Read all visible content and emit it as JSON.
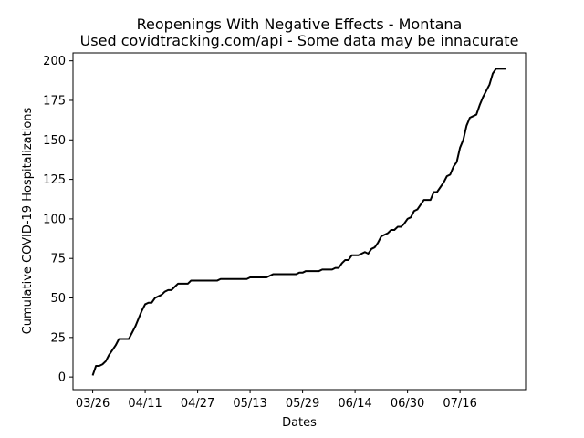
{
  "chart_data": {
    "type": "line",
    "title": "Reopenings With Negative Effects - Montana",
    "subtitle": "Used covidtracking.com/api - Some data may be innacurate",
    "xlabel": "Dates",
    "ylabel": "Cumulative COVID-19 Hospitalizations",
    "x_tick_labels": [
      "03/26",
      "04/11",
      "04/27",
      "05/13",
      "05/29",
      "06/14",
      "06/30",
      "07/16"
    ],
    "y_ticks": [
      0,
      25,
      50,
      75,
      100,
      125,
      150,
      175,
      200
    ],
    "ylim": [
      -8,
      205
    ],
    "xlim": [
      -6,
      132
    ],
    "x_start_label": "03/26",
    "grid": false,
    "legend": "none",
    "line_color": "#000000",
    "series": [
      {
        "x": [
          0,
          1,
          2,
          3,
          4,
          5,
          6,
          7,
          8,
          9,
          10,
          11,
          12,
          13,
          14,
          15,
          16,
          17,
          18,
          19,
          20,
          21,
          22,
          23,
          24,
          25,
          26,
          27,
          28,
          29,
          30,
          31,
          32,
          33,
          34,
          35,
          36,
          37,
          38,
          39,
          40,
          41,
          42,
          43,
          44,
          45,
          46,
          47,
          48,
          49,
          50,
          51,
          52,
          53,
          54,
          55,
          56,
          57,
          58,
          59,
          60,
          61,
          62,
          63,
          64,
          65,
          66,
          67,
          68,
          69,
          70,
          71,
          72,
          73,
          74,
          75,
          76,
          77,
          78,
          79,
          80,
          81,
          82,
          83,
          84,
          85,
          86,
          87,
          88,
          89,
          90,
          91,
          92,
          93,
          94,
          95,
          96,
          97,
          98,
          99,
          100,
          101,
          102,
          103,
          104,
          105,
          106,
          107,
          108,
          109,
          110,
          111,
          112,
          113,
          114,
          115,
          116,
          117,
          118,
          119,
          120,
          121,
          122,
          123,
          124,
          125,
          126
        ],
        "y": [
          1,
          7,
          7,
          8,
          10,
          14,
          17,
          20,
          24,
          24,
          24,
          24,
          28,
          32,
          37,
          42,
          46,
          47,
          47,
          50,
          51,
          52,
          54,
          55,
          55,
          57,
          59,
          59,
          59,
          59,
          61,
          61,
          61,
          61,
          61,
          61,
          61,
          61,
          61,
          62,
          62,
          62,
          62,
          62,
          62,
          62,
          62,
          62,
          63,
          63,
          63,
          63,
          63,
          63,
          64,
          65,
          65,
          65,
          65,
          65,
          65,
          65,
          65,
          66,
          66,
          67,
          67,
          67,
          67,
          67,
          68,
          68,
          68,
          68,
          69,
          69,
          72,
          74,
          74,
          77,
          77,
          77,
          78,
          79,
          78,
          81,
          82,
          85,
          89,
          90,
          91,
          93,
          93,
          95,
          95,
          97,
          100,
          101,
          105,
          106,
          109,
          112,
          112,
          112,
          117,
          117,
          120,
          123,
          127,
          128,
          133,
          136,
          145,
          150,
          159,
          164,
          165,
          166,
          172,
          177,
          181,
          185,
          192,
          195,
          195,
          195,
          195
        ]
      }
    ]
  }
}
